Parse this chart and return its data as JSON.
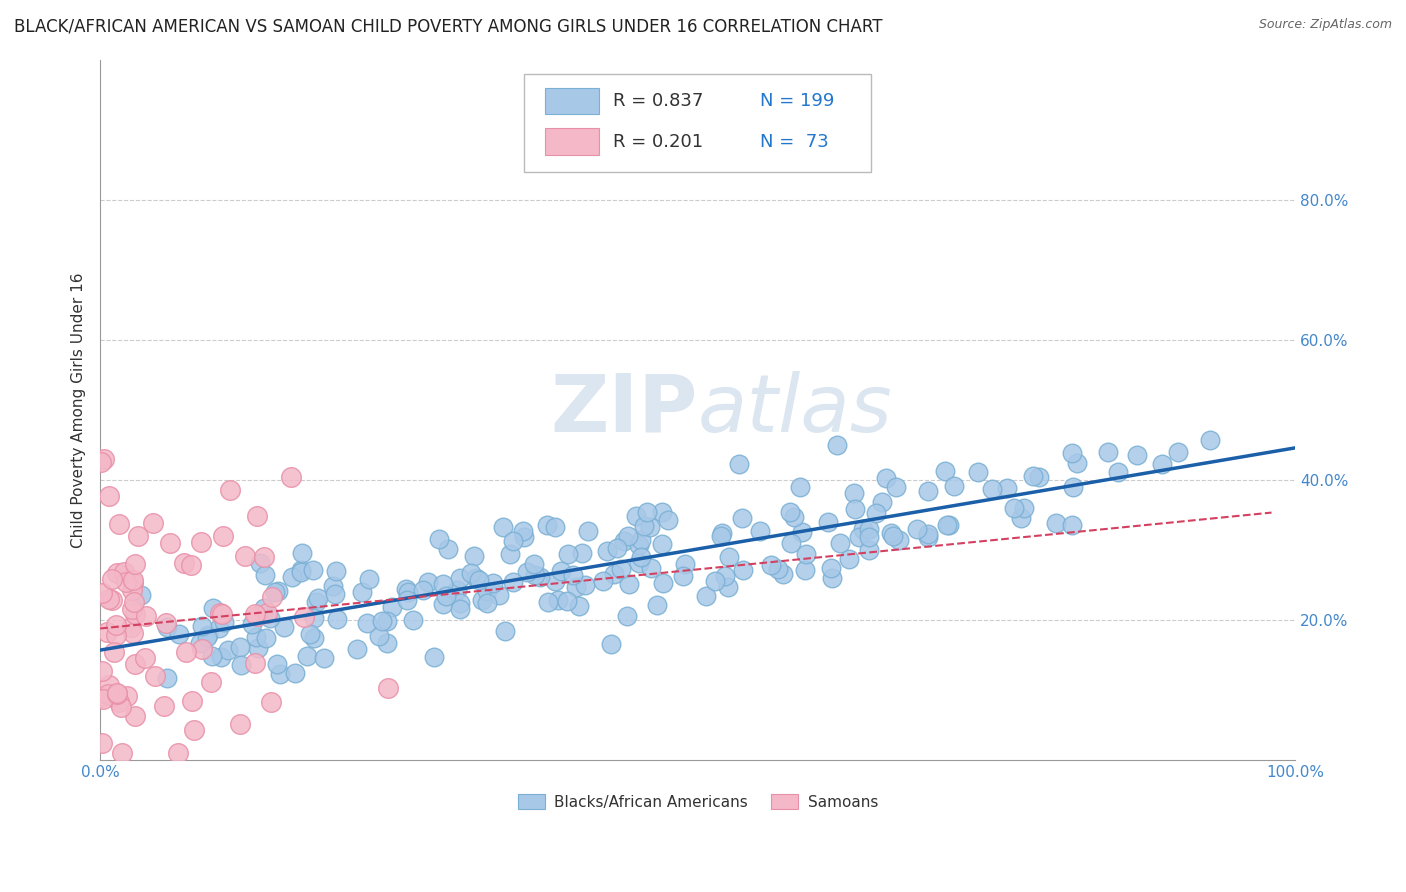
{
  "title": "BLACK/AFRICAN AMERICAN VS SAMOAN CHILD POVERTY AMONG GIRLS UNDER 16 CORRELATION CHART",
  "source_text": "Source: ZipAtlas.com",
  "ylabel": "Child Poverty Among Girls Under 16",
  "xlim": [
    0,
    1.0
  ],
  "ylim": [
    0,
    1.0
  ],
  "blue_color": "#a8c8e8",
  "blue_edge_color": "#7ab0d4",
  "pink_color": "#f4b8c8",
  "pink_edge_color": "#e890a8",
  "blue_line_color": "#1a5fa8",
  "pink_line_color": "#d44060",
  "grid_color": "#cccccc",
  "watermark_color": "#dce6f0",
  "title_fontsize": 12,
  "axis_label_fontsize": 11,
  "tick_fontsize": 11,
  "tick_color": "#4488cc",
  "legend_fontsize": 13,
  "blue_R": 0.837,
  "pink_R": 0.201,
  "blue_N": 199,
  "pink_N": 73,
  "legend_text_color": "#333333",
  "legend_N_color": "#2277cc"
}
